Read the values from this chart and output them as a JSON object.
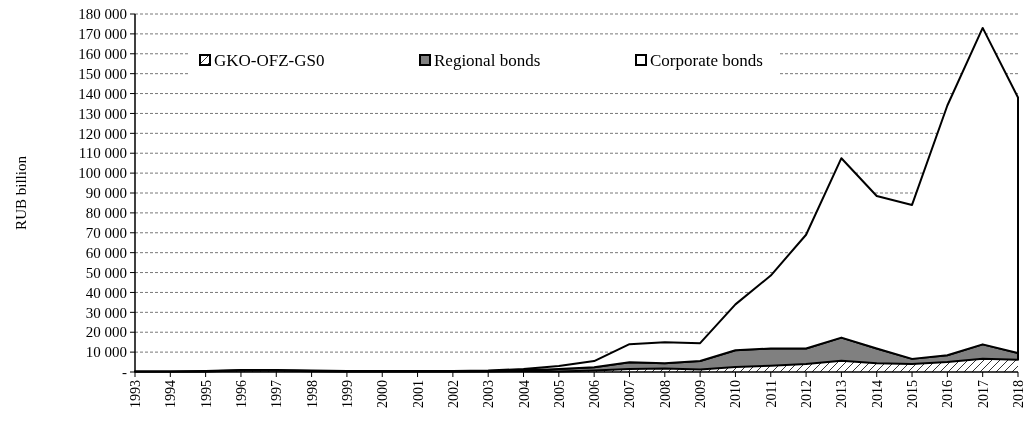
{
  "chart_data": {
    "type": "area",
    "stacked": true,
    "ylabel": "RUB billion",
    "categories": [
      "1993",
      "1994",
      "1995",
      "1996",
      "1997",
      "1998",
      "1999",
      "2000",
      "2001",
      "2002",
      "2003",
      "2004",
      "2005",
      "2006",
      "2007",
      "2008",
      "2009",
      "2010",
      "2011",
      "2012",
      "2013",
      "2014",
      "2015",
      "2016",
      "2017",
      "2018"
    ],
    "series": [
      {
        "name": "GKO-OFZ-GS0",
        "color": "#ffffff",
        "values": [
          200,
          200,
          300,
          700,
          700,
          400,
          300,
          300,
          300,
          300,
          300,
          400,
          300,
          800,
          1500,
          1700,
          1300,
          2500,
          3200,
          4000,
          5700,
          4400,
          4000,
          5000,
          6700,
          6200
        ]
      },
      {
        "name": "Regional bonds",
        "color": "#808080",
        "values": [
          0,
          0,
          100,
          100,
          100,
          100,
          100,
          100,
          100,
          100,
          200,
          400,
          1200,
          1600,
          3400,
          2700,
          4200,
          8400,
          8600,
          7800,
          11600,
          7400,
          2600,
          3400,
          7200,
          3400
        ]
      },
      {
        "name": "Corporate bonds",
        "color": "#ffffff",
        "values": [
          100,
          100,
          100,
          200,
          200,
          200,
          100,
          100,
          100,
          100,
          300,
          700,
          1500,
          3100,
          9100,
          10600,
          9000,
          23100,
          36700,
          57200,
          90200,
          76700,
          77400,
          125600,
          159100,
          128400
        ]
      }
    ],
    "ylim": [
      0,
      180000
    ],
    "yticks": [
      {
        "value": 0,
        "label": "-"
      },
      {
        "value": 10000,
        "label": "10 000"
      },
      {
        "value": 20000,
        "label": "20 000"
      },
      {
        "value": 30000,
        "label": "30 000"
      },
      {
        "value": 40000,
        "label": "40 000"
      },
      {
        "value": 50000,
        "label": "50 000"
      },
      {
        "value": 60000,
        "label": "60 000"
      },
      {
        "value": 70000,
        "label": "70 000"
      },
      {
        "value": 80000,
        "label": "80 000"
      },
      {
        "value": 90000,
        "label": "90 000"
      },
      {
        "value": 100000,
        "label": "100 000"
      },
      {
        "value": 110000,
        "label": "110 000"
      },
      {
        "value": 120000,
        "label": "120 000"
      },
      {
        "value": 130000,
        "label": "130 000"
      },
      {
        "value": 140000,
        "label": "140 000"
      },
      {
        "value": 150000,
        "label": "150 000"
      },
      {
        "value": 160000,
        "label": "160 000"
      },
      {
        "value": 170000,
        "label": "170 000"
      },
      {
        "value": 180000,
        "label": "180 000"
      }
    ],
    "grid": "y",
    "legend": "top"
  }
}
